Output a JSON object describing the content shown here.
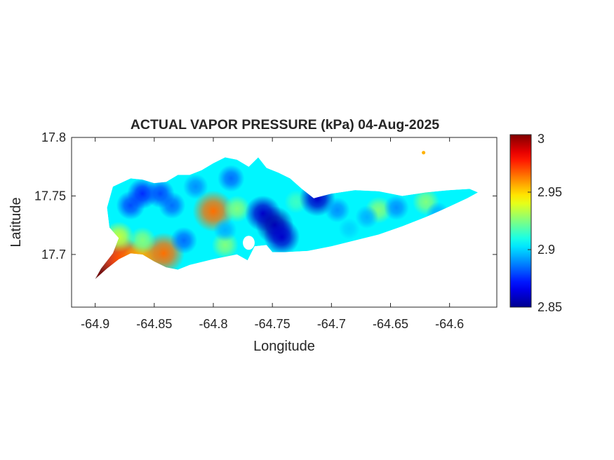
{
  "chart_data": {
    "type": "heatmap",
    "title": "ACTUAL VAPOR PRESSURE (kPa) 04-Aug-2025",
    "xlabel": "Longitude",
    "ylabel": "Latitude",
    "xlim": [
      -64.92,
      -64.56
    ],
    "ylim": [
      17.655,
      17.8
    ],
    "x_ticks": [
      -64.9,
      -64.85,
      -64.8,
      -64.75,
      -64.7,
      -64.65,
      -64.6
    ],
    "x_tick_labels": [
      "-64.9",
      "-64.85",
      "-64.8",
      "-64.75",
      "-64.7",
      "-64.65",
      "-64.6"
    ],
    "y_ticks": [
      17.7,
      17.75,
      17.8
    ],
    "y_tick_labels": [
      "17.7",
      "17.75",
      "17.8"
    ],
    "colorbar": {
      "colormap": "jet",
      "range": [
        2.85,
        3.0
      ],
      "ticks": [
        2.85,
        2.9,
        2.95,
        3.0
      ],
      "tick_labels": [
        "2.85",
        "2.9",
        "2.95",
        "3"
      ]
    },
    "baseline_value": 2.905,
    "grid": false,
    "outline": [
      [
        -64.9,
        17.679
      ],
      [
        -64.89,
        17.688
      ],
      [
        -64.88,
        17.696
      ],
      [
        -64.87,
        17.701
      ],
      [
        -64.86,
        17.7
      ],
      [
        -64.85,
        17.694
      ],
      [
        -64.84,
        17.689
      ],
      [
        -64.83,
        17.687
      ],
      [
        -64.82,
        17.691
      ],
      [
        -64.8,
        17.696
      ],
      [
        -64.78,
        17.7
      ],
      [
        -64.771,
        17.695
      ],
      [
        -64.765,
        17.707
      ],
      [
        -64.755,
        17.708
      ],
      [
        -64.75,
        17.702
      ],
      [
        -64.74,
        17.702
      ],
      [
        -64.72,
        17.703
      ],
      [
        -64.7,
        17.707
      ],
      [
        -64.68,
        17.712
      ],
      [
        -64.66,
        17.717
      ],
      [
        -64.64,
        17.724
      ],
      [
        -64.62,
        17.732
      ],
      [
        -64.6,
        17.741
      ],
      [
        -64.585,
        17.748
      ],
      [
        -64.576,
        17.753
      ],
      [
        -64.583,
        17.756
      ],
      [
        -64.6,
        17.755
      ],
      [
        -64.62,
        17.753
      ],
      [
        -64.64,
        17.75
      ],
      [
        -64.66,
        17.754
      ],
      [
        -64.68,
        17.755
      ],
      [
        -64.7,
        17.752
      ],
      [
        -64.715,
        17.748
      ],
      [
        -64.725,
        17.756
      ],
      [
        -64.735,
        17.765
      ],
      [
        -64.745,
        17.77
      ],
      [
        -64.755,
        17.774
      ],
      [
        -64.762,
        17.783
      ],
      [
        -64.77,
        17.775
      ],
      [
        -64.78,
        17.781
      ],
      [
        -64.79,
        17.783
      ],
      [
        -64.8,
        17.778
      ],
      [
        -64.81,
        17.772
      ],
      [
        -64.82,
        17.768
      ],
      [
        -64.83,
        17.768
      ],
      [
        -64.84,
        17.762
      ],
      [
        -64.85,
        17.761
      ],
      [
        -64.86,
        17.764
      ],
      [
        -64.87,
        17.765
      ],
      [
        -64.885,
        17.758
      ],
      [
        -64.89,
        17.74
      ],
      [
        -64.888,
        17.723
      ],
      [
        -64.88,
        17.714
      ],
      [
        -64.885,
        17.701
      ],
      [
        -64.895,
        17.688
      ]
    ],
    "bay": {
      "center": [
        -64.77,
        17.71
      ],
      "radius": [
        0.005,
        0.006
      ]
    },
    "islet": {
      "lon": -64.622,
      "lat": 17.787,
      "value": 2.955
    },
    "anomalies": [
      {
        "lon": -64.895,
        "lat": 17.682,
        "value": 3.0
      },
      {
        "lon": -64.88,
        "lat": 17.697,
        "value": 2.975
      },
      {
        "lon": -64.87,
        "lat": 17.695,
        "value": 2.965
      },
      {
        "lon": -64.86,
        "lat": 17.697,
        "value": 2.955
      },
      {
        "lon": -64.842,
        "lat": 17.701,
        "value": 2.965
      },
      {
        "lon": -64.88,
        "lat": 17.715,
        "value": 2.935
      },
      {
        "lon": -64.86,
        "lat": 17.712,
        "value": 2.925
      },
      {
        "lon": -64.8,
        "lat": 17.737,
        "value": 2.965
      },
      {
        "lon": -64.78,
        "lat": 17.739,
        "value": 2.925
      },
      {
        "lon": -64.79,
        "lat": 17.708,
        "value": 2.925
      },
      {
        "lon": -64.73,
        "lat": 17.745,
        "value": 2.915
      },
      {
        "lon": -64.62,
        "lat": 17.745,
        "value": 2.925
      },
      {
        "lon": -64.66,
        "lat": 17.738,
        "value": 2.925
      },
      {
        "lon": -64.87,
        "lat": 17.742,
        "value": 2.88
      },
      {
        "lon": -64.86,
        "lat": 17.752,
        "value": 2.875
      },
      {
        "lon": -64.835,
        "lat": 17.742,
        "value": 2.885
      },
      {
        "lon": -64.845,
        "lat": 17.752,
        "value": 2.88
      },
      {
        "lon": -64.825,
        "lat": 17.712,
        "value": 2.885
      },
      {
        "lon": -64.758,
        "lat": 17.735,
        "value": 2.86
      },
      {
        "lon": -64.748,
        "lat": 17.725,
        "value": 2.855
      },
      {
        "lon": -64.742,
        "lat": 17.715,
        "value": 2.86
      },
      {
        "lon": -64.712,
        "lat": 17.748,
        "value": 2.86
      },
      {
        "lon": -64.785,
        "lat": 17.765,
        "value": 2.885
      },
      {
        "lon": -64.815,
        "lat": 17.758,
        "value": 2.89
      },
      {
        "lon": -64.695,
        "lat": 17.738,
        "value": 2.89
      },
      {
        "lon": -64.67,
        "lat": 17.732,
        "value": 2.895
      },
      {
        "lon": -64.645,
        "lat": 17.74,
        "value": 2.89
      },
      {
        "lon": -64.61,
        "lat": 17.735,
        "value": 2.895
      },
      {
        "lon": -64.685,
        "lat": 17.722,
        "value": 2.9
      },
      {
        "lon": -64.79,
        "lat": 17.721,
        "value": 2.895
      }
    ]
  }
}
